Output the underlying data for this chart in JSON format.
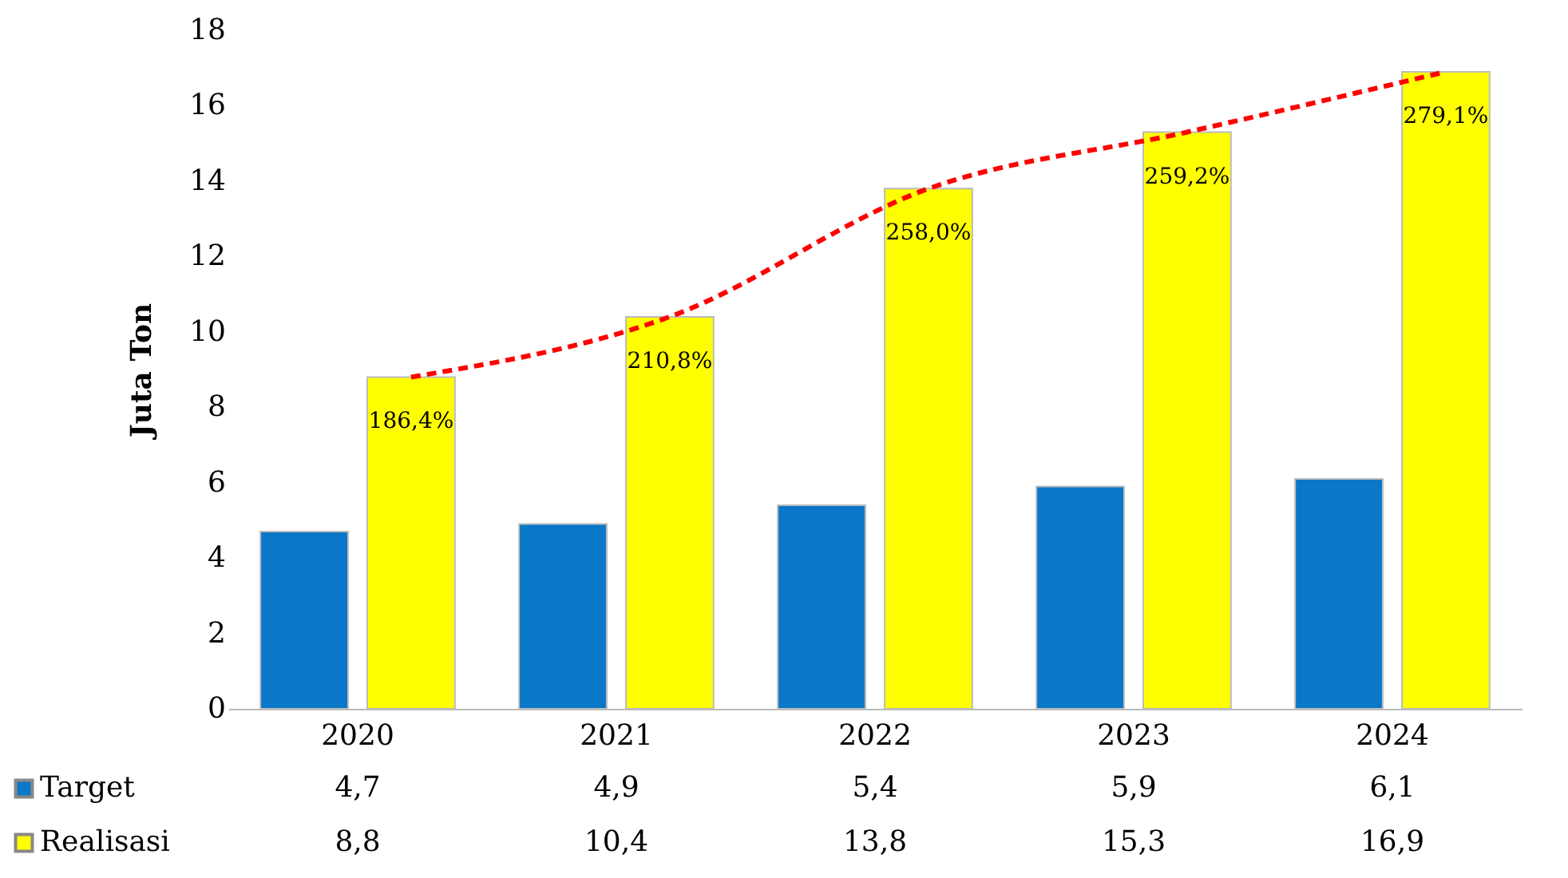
{
  "chart_data": {
    "type": "bar",
    "ylabel": "Juta Ton",
    "categories": [
      "2020",
      "2021",
      "2022",
      "2023",
      "2024"
    ],
    "series": [
      {
        "name": "Target",
        "color": "#0a77c9",
        "values": [
          4.7,
          4.9,
          5.4,
          5.9,
          6.1
        ],
        "value_labels": [
          "4,7",
          "4,9",
          "5,4",
          "5,9",
          "6,1"
        ]
      },
      {
        "name": "Realisasi",
        "color": "#ffff00",
        "values": [
          8.8,
          10.4,
          13.8,
          15.3,
          16.9
        ],
        "value_labels": [
          "8,8",
          "10,4",
          "13,8",
          "15,3",
          "16,9"
        ]
      },
      {
        "type": "line",
        "color": "#ff0000",
        "line_style": "dashed",
        "values": [
          8.8,
          10.4,
          13.8,
          15.3,
          16.9
        ]
      }
    ],
    "annotations": [
      "186,4%",
      "210,8%",
      "258,0%",
      "259,2%",
      "279,1%"
    ],
    "ylim": [
      0,
      18
    ],
    "yticks": [
      0,
      2,
      4,
      6,
      8,
      10,
      12,
      14,
      16,
      18
    ],
    "grid": false,
    "legend": "bottom left"
  }
}
